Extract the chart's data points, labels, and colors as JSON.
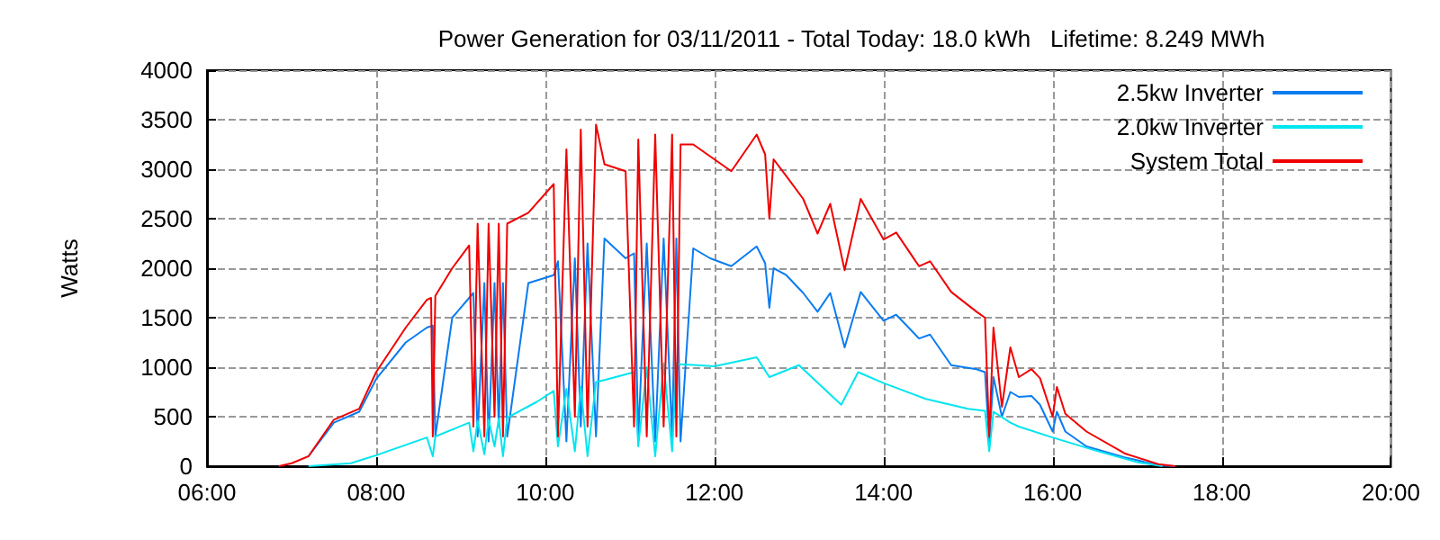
{
  "chart_data": {
    "type": "line",
    "title": "Power Generation for 03/11/2011 - Total Today: 18.0 kWh   Lifetime: 8.249 MWh",
    "ylabel": "Watts",
    "xlim": [
      6,
      20
    ],
    "xticks": [
      {
        "value": 6,
        "label": "06:00"
      },
      {
        "value": 8,
        "label": "08:00"
      },
      {
        "value": 10,
        "label": "10:00"
      },
      {
        "value": 12,
        "label": "12:00"
      },
      {
        "value": 14,
        "label": "14:00"
      },
      {
        "value": 16,
        "label": "16:00"
      },
      {
        "value": 18,
        "label": "18:00"
      },
      {
        "value": 20,
        "label": "20:00"
      }
    ],
    "ylim": [
      0,
      4000
    ],
    "yticks": [
      0,
      500,
      1000,
      1500,
      2000,
      2500,
      3000,
      3500,
      4000
    ],
    "grid": true,
    "legend": "top right",
    "marker": "none",
    "line_style": "solid",
    "series": [
      {
        "name": "2.5kw Inverter",
        "color": "#0a7cf0",
        "x": [
          7.2,
          7.5,
          7.8,
          8.0,
          8.35,
          8.6,
          8.67,
          8.7,
          8.9,
          9.1,
          9.15,
          9.2,
          9.28,
          9.33,
          9.4,
          9.45,
          9.5,
          9.55,
          9.8,
          10.1,
          10.15,
          10.25,
          10.35,
          10.42,
          10.5,
          10.6,
          10.7,
          10.95,
          11.05,
          11.1,
          11.2,
          11.3,
          11.4,
          11.5,
          11.55,
          11.6,
          11.75,
          11.95,
          12.2,
          12.5,
          12.6,
          12.65,
          12.7,
          12.85,
          13.05,
          13.22,
          13.37,
          13.54,
          13.73,
          14.0,
          14.15,
          14.42,
          14.55,
          14.8,
          15.1,
          15.2,
          15.25,
          15.3,
          15.4,
          15.5,
          15.6,
          15.75,
          15.85,
          16.0,
          16.05,
          16.15,
          16.4,
          16.85,
          17.25,
          17.45
        ],
        "values": [
          100,
          440,
          550,
          880,
          1250,
          1400,
          1420,
          300,
          1500,
          1700,
          1750,
          300,
          1850,
          250,
          1850,
          400,
          1850,
          300,
          1850,
          1930,
          2070,
          250,
          2100,
          400,
          2250,
          300,
          2300,
          2100,
          2150,
          300,
          2250,
          250,
          2300,
          300,
          2300,
          250,
          2200,
          2100,
          2020,
          2220,
          2050,
          1600,
          2000,
          1930,
          1750,
          1560,
          1750,
          1200,
          1760,
          1470,
          1530,
          1290,
          1330,
          1020,
          980,
          950,
          250,
          900,
          500,
          750,
          700,
          710,
          620,
          350,
          550,
          350,
          200,
          90,
          10,
          0
        ]
      },
      {
        "name": "2.0kw Inverter",
        "color": "#00e5ee",
        "x": [
          7.2,
          7.7,
          8.0,
          8.6,
          8.67,
          8.7,
          9.1,
          9.15,
          9.2,
          9.28,
          9.33,
          9.4,
          9.45,
          9.5,
          9.55,
          9.9,
          10.1,
          10.15,
          10.25,
          10.35,
          10.42,
          10.5,
          10.6,
          10.7,
          11.05,
          11.1,
          11.2,
          11.3,
          11.4,
          11.5,
          11.55,
          11.6,
          12.0,
          12.5,
          12.65,
          13.0,
          13.5,
          13.7,
          14.0,
          14.5,
          15.0,
          15.2,
          15.25,
          15.3,
          15.5,
          15.6,
          16.0,
          16.5,
          17.0,
          17.3
        ],
        "values": [
          0,
          30,
          110,
          290,
          100,
          300,
          440,
          150,
          460,
          120,
          470,
          200,
          480,
          100,
          490,
          650,
          760,
          200,
          780,
          150,
          800,
          100,
          850,
          870,
          950,
          200,
          1000,
          100,
          1040,
          150,
          1040,
          1030,
          1010,
          1100,
          900,
          1020,
          620,
          950,
          840,
          680,
          580,
          560,
          150,
          550,
          440,
          400,
          290,
          160,
          40,
          0
        ]
      },
      {
        "name": "System Total",
        "color": "#f00000",
        "x": [
          6.85,
          7.0,
          7.2,
          7.5,
          7.8,
          8.0,
          8.35,
          8.6,
          8.65,
          8.67,
          8.7,
          8.9,
          9.1,
          9.15,
          9.2,
          9.28,
          9.33,
          9.4,
          9.45,
          9.5,
          9.55,
          9.8,
          10.1,
          10.15,
          10.25,
          10.35,
          10.42,
          10.5,
          10.6,
          10.7,
          10.95,
          11.05,
          11.1,
          11.2,
          11.3,
          11.4,
          11.5,
          11.55,
          11.6,
          11.75,
          11.95,
          12.2,
          12.5,
          12.6,
          12.65,
          12.7,
          12.85,
          13.05,
          13.22,
          13.37,
          13.54,
          13.73,
          14.0,
          14.15,
          14.42,
          14.55,
          14.8,
          15.1,
          15.2,
          15.25,
          15.3,
          15.4,
          15.5,
          15.6,
          15.75,
          15.85,
          16.0,
          16.05,
          16.15,
          16.4,
          16.85,
          17.25,
          17.45
        ],
        "values": [
          0,
          30,
          100,
          470,
          580,
          950,
          1400,
          1680,
          1700,
          300,
          1720,
          2000,
          2230,
          400,
          2450,
          300,
          2450,
          500,
          2450,
          300,
          2450,
          2560,
          2850,
          300,
          3200,
          500,
          3400,
          400,
          3450,
          3050,
          2980,
          400,
          3300,
          300,
          3350,
          400,
          3350,
          300,
          3250,
          3250,
          3130,
          2980,
          3350,
          3150,
          2500,
          3100,
          2930,
          2700,
          2350,
          2650,
          1980,
          2700,
          2290,
          2360,
          2020,
          2070,
          1760,
          1560,
          1500,
          300,
          1400,
          600,
          1200,
          900,
          980,
          890,
          500,
          800,
          530,
          350,
          130,
          20,
          0
        ]
      }
    ]
  }
}
